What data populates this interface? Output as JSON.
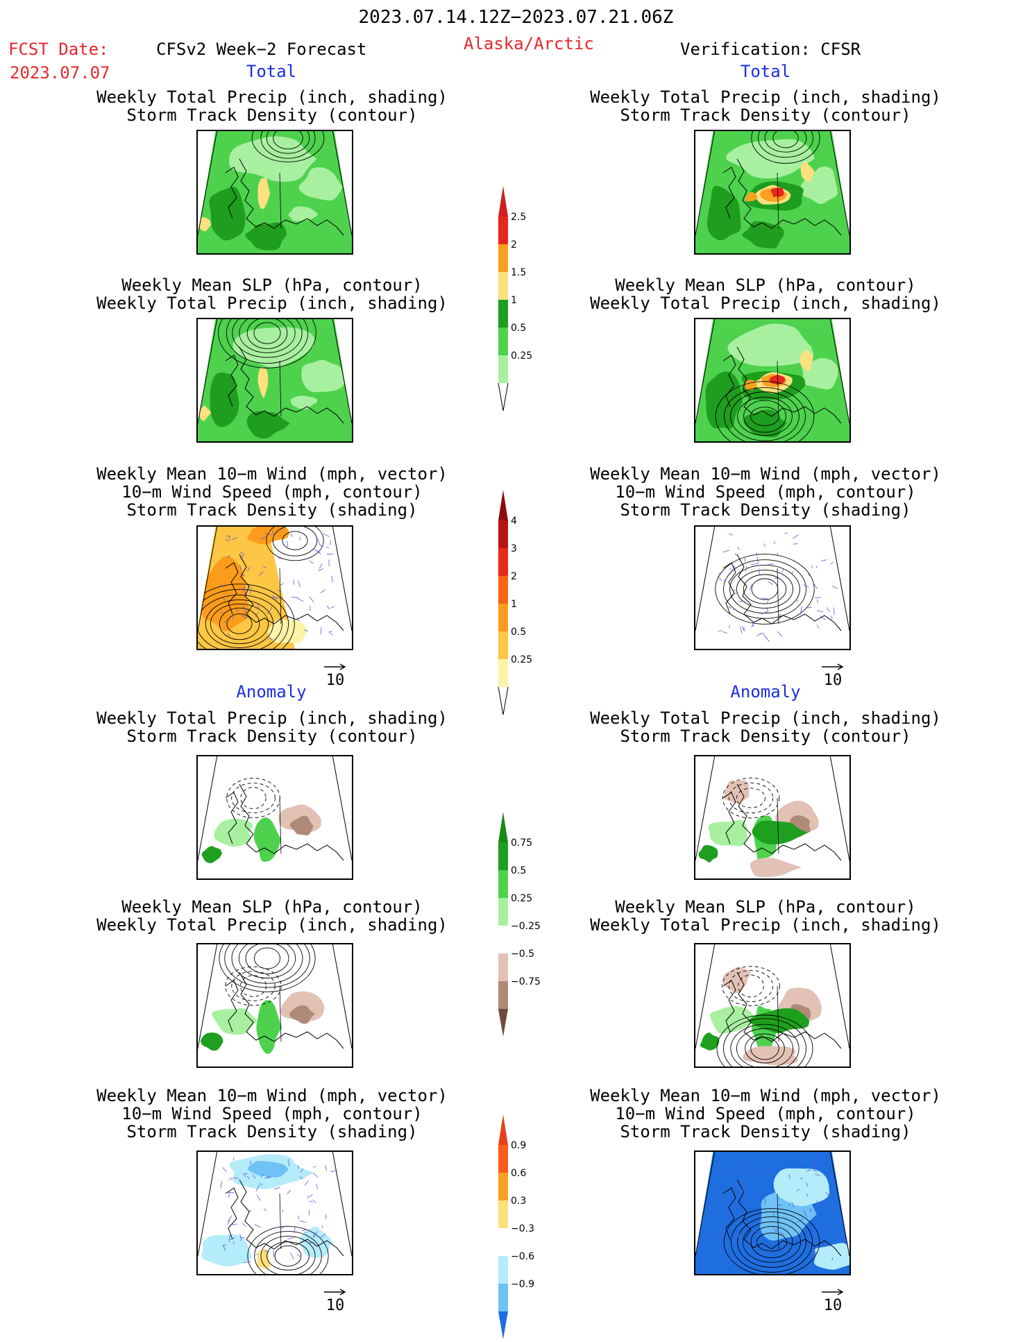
{
  "header": {
    "date_range": "2023.07.14.12Z−2023.07.21.06Z",
    "fcst_label": "FCST Date:",
    "fcst_date": "2023.07.07",
    "model": "CFSv2 Week−2 Forecast",
    "region": "Alaska/Arctic",
    "verification": "Verification: CFSR"
  },
  "sections": {
    "total": "Total",
    "anomaly": "Anomaly"
  },
  "panels": {
    "precip_storm": [
      "Weekly Total Precip (inch, shading)",
      "Storm Track Density (contour)"
    ],
    "slp_precip": [
      "Weekly Mean SLP (hPa, contour)",
      "Weekly Total Precip (inch, shading)"
    ],
    "wind_storm": [
      "Weekly Mean 10−m Wind (mph, vector)",
      "10−m Wind Speed (mph, contour)",
      "Storm Track Density (shading)"
    ]
  },
  "vector_ref": "10",
  "colorbars": [
    {
      "name": "total-precip",
      "levels": [
        "2.5",
        "2",
        "1.5",
        "1",
        "0.5",
        "0.25"
      ],
      "colors": [
        "#e8261c",
        "#fca020",
        "#fee17f",
        "#1e9d1e",
        "#4ed24e",
        "#a8f0a0"
      ],
      "top": "#d0201c"
    },
    {
      "name": "total-storm",
      "levels": [
        "4",
        "3",
        "2",
        "1",
        "0.5",
        "0.25"
      ],
      "colors": [
        "#b81414",
        "#e82a18",
        "#fa6410",
        "#fc9c1a",
        "#fdc644",
        "#fff3a8"
      ],
      "top": "#8c0c0c"
    },
    {
      "name": "anom-precip",
      "levels": [
        "0.75",
        "0.5",
        "0.25",
        "−0.25",
        "−0.5",
        "−0.75"
      ],
      "colors": [
        "#1ea01e",
        "#4ed24e",
        "#a8f0a0",
        "#ffffff",
        "#e2c2b4",
        "#b08a78"
      ],
      "top": "#178a17",
      "bottom": "#6e4a3c"
    },
    {
      "name": "anom-storm",
      "levels": [
        "0.9",
        "0.6",
        "0.3",
        "−0.3",
        "−0.6",
        "−0.9"
      ],
      "colors": [
        "#fc5a1a",
        "#fca020",
        "#fee17f",
        "#ffffff",
        "#b4ecfa",
        "#6ec2f6"
      ],
      "top": "#e8401a",
      "bottom": "#1e6ee0"
    }
  ],
  "colors": {
    "date_red": "#e8262a",
    "section_blue": "#1a2ee6"
  }
}
